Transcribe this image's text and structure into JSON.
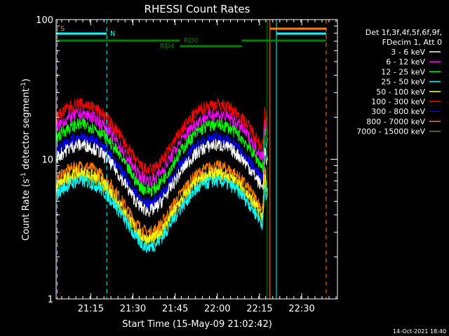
{
  "chart_data": {
    "type": "line",
    "title": "RHESSI Count Rates",
    "xlabel": "Start Time (15-May-09 21:02:42)",
    "ylabel_main": "Count Rate (s",
    "ylabel_sup1": "-1",
    "ylabel_mid": " detector segment",
    "ylabel_sup2": "-1",
    "ylabel_end": ")",
    "yscale": "log",
    "ylim": [
      1,
      100
    ],
    "xlim_minutes": [
      0,
      100
    ],
    "x_ticks": [
      {
        "label": "21:15",
        "t": 12.3
      },
      {
        "label": "21:30",
        "t": 27.3
      },
      {
        "label": "21:45",
        "t": 42.3
      },
      {
        "label": "22:00",
        "t": 57.3
      },
      {
        "label": "22:15",
        "t": 72.3
      },
      {
        "label": "22:30",
        "t": 87.3
      }
    ],
    "y_ticks": [
      {
        "label": "1",
        "v": 1
      },
      {
        "label": "10",
        "v": 10
      },
      {
        "label": "100",
        "v": 100
      }
    ],
    "legend_header": [
      "Det 1f,3f,4f,5f,6f,9f,",
      "FDecim 1, Att 0"
    ],
    "legend_placement": "right",
    "series": [
      {
        "name": "3 - 6 keV",
        "color": "#ffffff",
        "scale": 1.0
      },
      {
        "name": "6 - 12 keV",
        "color": "#ff00ff",
        "scale": 1.65
      },
      {
        "name": "12 - 25 keV",
        "color": "#00ff00",
        "scale": 1.4
      },
      {
        "name": "25 - 50 keV",
        "color": "#00ffff",
        "scale": 0.55
      },
      {
        "name": "50 - 100 keV",
        "color": "#ffff00",
        "scale": 0.62
      },
      {
        "name": "100 - 300 keV",
        "color": "#ff0000",
        "scale": 1.95
      },
      {
        "name": "300 - 800 keV",
        "color": "#0000ff",
        "scale": 1.12
      },
      {
        "name": "800 - 7000 keV",
        "color": "#ff8000",
        "scale": 0.7
      },
      {
        "name": "7000 - 15000 keV",
        "color": "#808000",
        "scale": 0.6
      }
    ],
    "annotations": [
      {
        "label": "S",
        "color": "#ff8000"
      },
      {
        "label": "N",
        "color": "#00ffff"
      },
      {
        "label": "RD0",
        "color": "#008000"
      },
      {
        "label": "RD4",
        "color": "#008000"
      }
    ]
  },
  "footer_date": "14-Oct-2021 18:40"
}
